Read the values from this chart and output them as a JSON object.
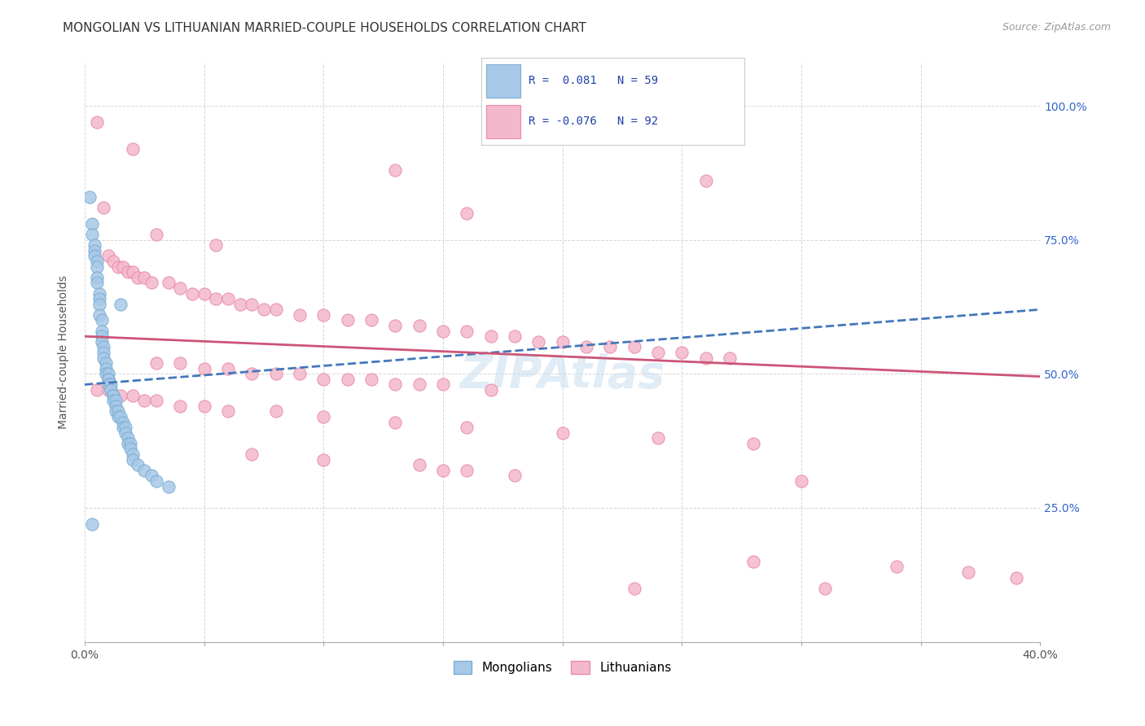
{
  "title": "MONGOLIAN VS LITHUANIAN MARRIED-COUPLE HOUSEHOLDS CORRELATION CHART",
  "source": "Source: ZipAtlas.com",
  "ylabel": "Married-couple Households",
  "mongolian_color": "#a8c8e8",
  "lithuanian_color": "#f4b8cc",
  "mongolian_edge": "#7aaed0",
  "lithuanian_edge": "#e88aa8",
  "trend_mongolian_color": "#4477bb",
  "trend_lithuanian_color": "#cc5577",
  "legend_r_color": "#2244aa",
  "background_color": "#ffffff",
  "grid_color": "#cccccc",
  "title_fontsize": 11,
  "axis_label_fontsize": 10,
  "tick_fontsize": 10,
  "source_fontsize": 9,
  "xlim": [
    0.0,
    0.4
  ],
  "ylim": [
    0.0,
    1.08
  ],
  "mongolian_scatter": [
    [
      0.002,
      0.83
    ],
    [
      0.003,
      0.78
    ],
    [
      0.003,
      0.76
    ],
    [
      0.004,
      0.74
    ],
    [
      0.004,
      0.73
    ],
    [
      0.004,
      0.72
    ],
    [
      0.005,
      0.71
    ],
    [
      0.005,
      0.7
    ],
    [
      0.005,
      0.68
    ],
    [
      0.005,
      0.67
    ],
    [
      0.006,
      0.65
    ],
    [
      0.006,
      0.64
    ],
    [
      0.006,
      0.63
    ],
    [
      0.006,
      0.61
    ],
    [
      0.007,
      0.6
    ],
    [
      0.007,
      0.58
    ],
    [
      0.007,
      0.57
    ],
    [
      0.007,
      0.56
    ],
    [
      0.008,
      0.55
    ],
    [
      0.008,
      0.54
    ],
    [
      0.008,
      0.53
    ],
    [
      0.009,
      0.52
    ],
    [
      0.009,
      0.51
    ],
    [
      0.009,
      0.5
    ],
    [
      0.01,
      0.5
    ],
    [
      0.01,
      0.49
    ],
    [
      0.01,
      0.49
    ],
    [
      0.01,
      0.48
    ],
    [
      0.011,
      0.48
    ],
    [
      0.011,
      0.47
    ],
    [
      0.011,
      0.47
    ],
    [
      0.012,
      0.46
    ],
    [
      0.012,
      0.46
    ],
    [
      0.012,
      0.45
    ],
    [
      0.013,
      0.45
    ],
    [
      0.013,
      0.44
    ],
    [
      0.013,
      0.43
    ],
    [
      0.014,
      0.43
    ],
    [
      0.014,
      0.42
    ],
    [
      0.015,
      0.42
    ],
    [
      0.015,
      0.63
    ],
    [
      0.016,
      0.41
    ],
    [
      0.016,
      0.4
    ],
    [
      0.017,
      0.4
    ],
    [
      0.017,
      0.39
    ],
    [
      0.018,
      0.38
    ],
    [
      0.018,
      0.37
    ],
    [
      0.019,
      0.37
    ],
    [
      0.019,
      0.36
    ],
    [
      0.02,
      0.35
    ],
    [
      0.02,
      0.34
    ],
    [
      0.022,
      0.33
    ],
    [
      0.025,
      0.32
    ],
    [
      0.028,
      0.31
    ],
    [
      0.03,
      0.3
    ],
    [
      0.035,
      0.29
    ],
    [
      0.003,
      0.22
    ]
  ],
  "lithuanian_scatter": [
    [
      0.005,
      0.97
    ],
    [
      0.02,
      0.92
    ],
    [
      0.13,
      0.88
    ],
    [
      0.26,
      0.86
    ],
    [
      0.008,
      0.81
    ],
    [
      0.16,
      0.8
    ],
    [
      0.03,
      0.76
    ],
    [
      0.055,
      0.74
    ],
    [
      0.01,
      0.72
    ],
    [
      0.012,
      0.71
    ],
    [
      0.014,
      0.7
    ],
    [
      0.016,
      0.7
    ],
    [
      0.018,
      0.69
    ],
    [
      0.02,
      0.69
    ],
    [
      0.022,
      0.68
    ],
    [
      0.025,
      0.68
    ],
    [
      0.028,
      0.67
    ],
    [
      0.035,
      0.67
    ],
    [
      0.04,
      0.66
    ],
    [
      0.045,
      0.65
    ],
    [
      0.05,
      0.65
    ],
    [
      0.055,
      0.64
    ],
    [
      0.06,
      0.64
    ],
    [
      0.065,
      0.63
    ],
    [
      0.07,
      0.63
    ],
    [
      0.075,
      0.62
    ],
    [
      0.08,
      0.62
    ],
    [
      0.09,
      0.61
    ],
    [
      0.1,
      0.61
    ],
    [
      0.11,
      0.6
    ],
    [
      0.12,
      0.6
    ],
    [
      0.13,
      0.59
    ],
    [
      0.14,
      0.59
    ],
    [
      0.15,
      0.58
    ],
    [
      0.16,
      0.58
    ],
    [
      0.17,
      0.57
    ],
    [
      0.18,
      0.57
    ],
    [
      0.19,
      0.56
    ],
    [
      0.2,
      0.56
    ],
    [
      0.21,
      0.55
    ],
    [
      0.22,
      0.55
    ],
    [
      0.23,
      0.55
    ],
    [
      0.24,
      0.54
    ],
    [
      0.25,
      0.54
    ],
    [
      0.26,
      0.53
    ],
    [
      0.27,
      0.53
    ],
    [
      0.03,
      0.52
    ],
    [
      0.04,
      0.52
    ],
    [
      0.05,
      0.51
    ],
    [
      0.06,
      0.51
    ],
    [
      0.07,
      0.5
    ],
    [
      0.08,
      0.5
    ],
    [
      0.09,
      0.5
    ],
    [
      0.1,
      0.49
    ],
    [
      0.11,
      0.49
    ],
    [
      0.12,
      0.49
    ],
    [
      0.13,
      0.48
    ],
    [
      0.14,
      0.48
    ],
    [
      0.15,
      0.48
    ],
    [
      0.17,
      0.47
    ],
    [
      0.005,
      0.47
    ],
    [
      0.01,
      0.47
    ],
    [
      0.015,
      0.46
    ],
    [
      0.02,
      0.46
    ],
    [
      0.025,
      0.45
    ],
    [
      0.03,
      0.45
    ],
    [
      0.04,
      0.44
    ],
    [
      0.05,
      0.44
    ],
    [
      0.06,
      0.43
    ],
    [
      0.08,
      0.43
    ],
    [
      0.1,
      0.42
    ],
    [
      0.13,
      0.41
    ],
    [
      0.16,
      0.4
    ],
    [
      0.2,
      0.39
    ],
    [
      0.24,
      0.38
    ],
    [
      0.28,
      0.37
    ],
    [
      0.07,
      0.35
    ],
    [
      0.1,
      0.34
    ],
    [
      0.14,
      0.33
    ],
    [
      0.15,
      0.32
    ],
    [
      0.16,
      0.32
    ],
    [
      0.18,
      0.31
    ],
    [
      0.3,
      0.3
    ],
    [
      0.28,
      0.15
    ],
    [
      0.34,
      0.14
    ],
    [
      0.37,
      0.13
    ],
    [
      0.39,
      0.12
    ],
    [
      0.23,
      0.1
    ],
    [
      0.31,
      0.1
    ]
  ],
  "trend_m_x0": 0.0,
  "trend_m_x1": 0.4,
  "trend_m_y0": 0.48,
  "trend_m_y1": 0.62,
  "trend_l_x0": 0.0,
  "trend_l_x1": 0.4,
  "trend_l_y0": 0.57,
  "trend_l_y1": 0.495
}
